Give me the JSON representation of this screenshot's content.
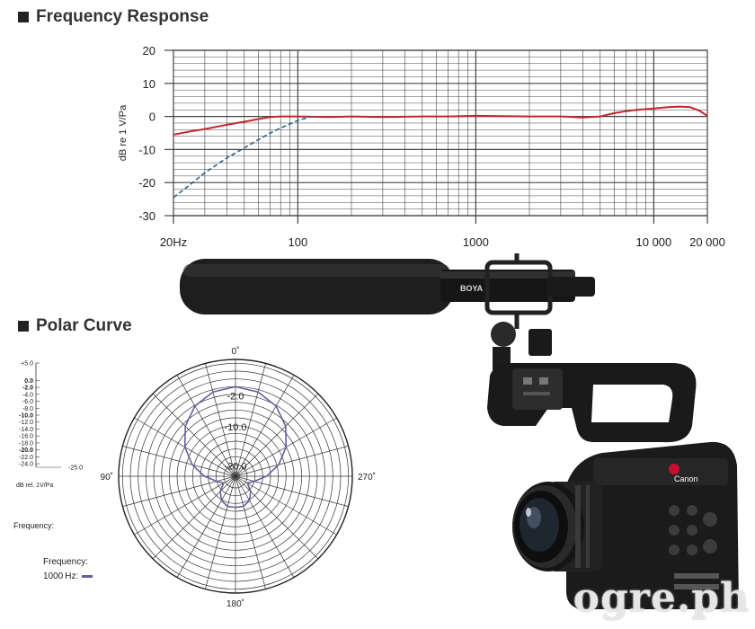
{
  "sections": {
    "frequency_title": "Frequency Response",
    "polar_title": "Polar Curve"
  },
  "colors": {
    "response": "#c0272d",
    "rolloff": "#2b5e8e",
    "polar": "#6c5b9c",
    "grid": "#444444"
  },
  "chart_data": [
    {
      "type": "line",
      "title": "Frequency Response",
      "xlabel": "",
      "ylabel": "dB re 1 V/Pa",
      "x_scale": "log",
      "xlim": [
        20,
        20000
      ],
      "ylim": [
        -30,
        20
      ],
      "y_ticks": [
        20,
        10,
        0,
        -10,
        -20,
        -30
      ],
      "y_tick_labels": [
        "20",
        "10",
        "0",
        "-10",
        "-20",
        "-30"
      ],
      "x_ticks": [
        20,
        100,
        1000,
        10000,
        20000
      ],
      "x_tick_labels": [
        "20Hz",
        "100",
        "1000",
        "10 000",
        "20 000"
      ],
      "grid": true,
      "series": [
        {
          "style": "solid",
          "color": "#c0272d",
          "x": [
            20,
            25,
            30,
            40,
            50,
            60,
            70,
            80,
            100,
            150,
            200,
            300,
            500,
            700,
            1000,
            2000,
            3000,
            4000,
            5000,
            6000,
            7000,
            8000,
            10000,
            12000,
            14000,
            16000,
            18000,
            20000
          ],
          "y": [
            -5.5,
            -4.5,
            -3.8,
            -2.5,
            -1.6,
            -0.8,
            -0.2,
            0,
            0,
            -0.2,
            0,
            -0.2,
            0,
            0,
            0.2,
            0,
            0,
            -0.3,
            0,
            1,
            1.6,
            2,
            2.4,
            2.8,
            3,
            2.8,
            1.8,
            0.2
          ]
        },
        {
          "style": "dashed",
          "color": "#2b5e8e",
          "x": [
            20,
            25,
            30,
            40,
            50,
            60,
            70,
            80,
            90,
            100,
            120
          ],
          "y": [
            -24.5,
            -20.5,
            -17,
            -12.5,
            -9.5,
            -7,
            -5,
            -3.5,
            -2.3,
            -1.2,
            0
          ]
        }
      ]
    },
    {
      "type": "polar",
      "title": "Polar Curve",
      "angle_labels": [
        "0˚",
        "90˚",
        "180˚",
        "270˚"
      ],
      "ring_labels": [
        "-2.0",
        "-10.0",
        "-20.0"
      ],
      "scale_labels": [
        "+5.0",
        "0.0",
        "-2.0",
        "-4.0",
        "-6.0",
        "-8.0",
        "-10.0",
        "-12.0",
        "-14.0",
        "-16.0",
        "-18.0",
        "-20.0",
        "-22.0",
        "-24.0",
        "-25.0"
      ],
      "scale_unit": "dB rel. 1V/Pa",
      "r_range": [
        -25,
        5
      ],
      "series": [
        {
          "name": "1000 Hz",
          "color": "#6c5b9c",
          "angles_deg": [
            0,
            15,
            30,
            45,
            60,
            75,
            90,
            105,
            120,
            135,
            150,
            165,
            180,
            195,
            210,
            225,
            240,
            255,
            270,
            285,
            300,
            315,
            330,
            345,
            360
          ],
          "db": [
            -2.0,
            -2.6,
            -4.2,
            -6.8,
            -10.0,
            -13.5,
            -17.0,
            -20.0,
            -21.5,
            -19.5,
            -17.8,
            -17.0,
            -17.0,
            -17.0,
            -17.8,
            -19.5,
            -21.5,
            -20.0,
            -17.0,
            -13.5,
            -10.0,
            -6.8,
            -4.2,
            -2.6,
            -2.0
          ]
        }
      ]
    }
  ],
  "polar_side": {
    "frequency_label": "Frequency:",
    "frequency_label_2": "Frequency:",
    "legend_value": "1000",
    "legend_unit": "Hz:"
  },
  "photo": {
    "mic_brand": "BOYA",
    "camera_brand": "Canon"
  },
  "watermark": "ogre.ph"
}
